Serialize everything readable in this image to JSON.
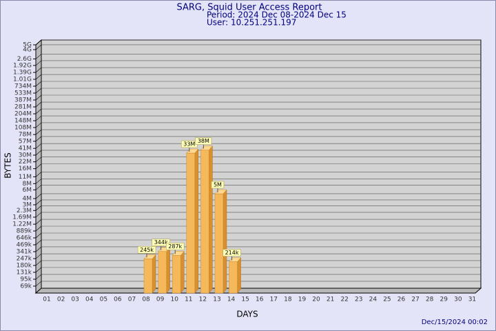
{
  "chart_data": {
    "type": "bar3d",
    "title": "SARG, Squid User Access Report",
    "subtitle": "Period: 2024 Dec 08-2024 Dec 15",
    "user": "User: 10.251.251.197",
    "x_label": "DAYS",
    "y_label": "BYTES",
    "timestamp": "Dec/15/2024 00:02",
    "log_scale": true,
    "grid": true,
    "color": "#f5b85a",
    "categories": [
      "01",
      "02",
      "03",
      "04",
      "05",
      "06",
      "07",
      "08",
      "09",
      "10",
      "11",
      "12",
      "13",
      "14",
      "15",
      "16",
      "17",
      "18",
      "19",
      "20",
      "21",
      "22",
      "23",
      "24",
      "25",
      "26",
      "27",
      "28",
      "29",
      "30",
      "31"
    ],
    "values": [
      null,
      null,
      null,
      null,
      null,
      null,
      null,
      245000,
      344000,
      287000,
      33000000,
      38000000,
      5000000,
      214000,
      null,
      null,
      null,
      null,
      null,
      null,
      null,
      null,
      null,
      null,
      null,
      null,
      null,
      null,
      null,
      null,
      null
    ],
    "value_labels": [
      null,
      null,
      null,
      null,
      null,
      null,
      null,
      "245k",
      "344k",
      "287k",
      "33M",
      "38M",
      "5M",
      "214k",
      null,
      null,
      null,
      null,
      null,
      null,
      null,
      null,
      null,
      null,
      null,
      null,
      null,
      null,
      null,
      null,
      null
    ],
    "ylim": [
      50000,
      5000000000
    ],
    "yticks": [
      {
        "value": 69000,
        "label": "69k"
      },
      {
        "value": 95000,
        "label": "95k"
      },
      {
        "value": 131000,
        "label": "131k"
      },
      {
        "value": 180000,
        "label": "180k"
      },
      {
        "value": 247000,
        "label": "247k"
      },
      {
        "value": 341000,
        "label": "341k"
      },
      {
        "value": 469000,
        "label": "469k"
      },
      {
        "value": 646000,
        "label": "646k"
      },
      {
        "value": 889000,
        "label": "889k"
      },
      {
        "value": 1220000,
        "label": "1.22M"
      },
      {
        "value": 1690000,
        "label": "1.69M"
      },
      {
        "value": 2300000,
        "label": "2.3M"
      },
      {
        "value": 3000000,
        "label": "3M"
      },
      {
        "value": 4000000,
        "label": "4M"
      },
      {
        "value": 6000000,
        "label": "6M"
      },
      {
        "value": 8000000,
        "label": "8M"
      },
      {
        "value": 11000000,
        "label": "11M"
      },
      {
        "value": 16000000,
        "label": "16M"
      },
      {
        "value": 22000000,
        "label": "22M"
      },
      {
        "value": 30000000,
        "label": "30M"
      },
      {
        "value": 41000000,
        "label": "41M"
      },
      {
        "value": 57000000,
        "label": "57M"
      },
      {
        "value": 78000000,
        "label": "78M"
      },
      {
        "value": 108000000,
        "label": "108M"
      },
      {
        "value": 148000000,
        "label": "148M"
      },
      {
        "value": 204000000,
        "label": "204M"
      },
      {
        "value": 281000000,
        "label": "281M"
      },
      {
        "value": 387000000,
        "label": "387M"
      },
      {
        "value": 533000000,
        "label": "533M"
      },
      {
        "value": 734000000,
        "label": "734M"
      },
      {
        "value": 1010000000,
        "label": "1.01G"
      },
      {
        "value": 1390000000,
        "label": "1.39G"
      },
      {
        "value": 1920000000,
        "label": "1.92G"
      },
      {
        "value": 2600000000,
        "label": "2.6G"
      },
      {
        "value": 4000000000,
        "label": "4G"
      },
      {
        "value": 5000000000,
        "label": "5G"
      }
    ]
  }
}
